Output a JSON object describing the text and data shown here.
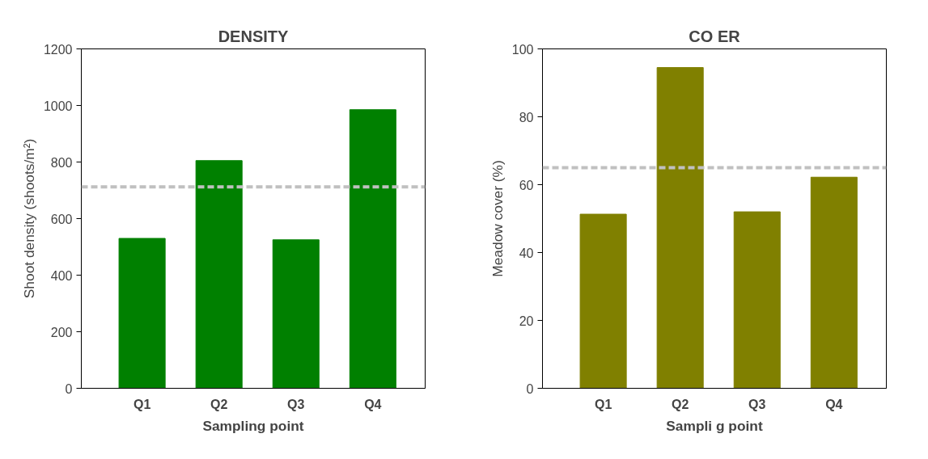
{
  "chart_data": [
    {
      "type": "bar",
      "title": "DENSITY",
      "xlabel": "Sampling point",
      "ylabel": "Shoot density (shoots/m²)",
      "categories": [
        "Q1",
        "Q2",
        "Q3",
        "Q4"
      ],
      "values": [
        530,
        805,
        525,
        985
      ],
      "color": "#008000",
      "ylim": [
        0,
        1200
      ],
      "yticks": [
        0,
        200,
        400,
        600,
        800,
        1000,
        1200
      ],
      "grid": false,
      "ref_lines": [
        {
          "axis": "y",
          "value": 712,
          "color": "#c0c0c0",
          "line_style": "dashed"
        }
      ]
    },
    {
      "type": "bar",
      "title": "CO ER",
      "xlabel": "Sampli g point",
      "ylabel": "Meadow cover (%)",
      "categories": [
        "Q1",
        "Q2",
        "Q3",
        "Q4"
      ],
      "values": [
        51.3,
        94.5,
        52,
        62.2
      ],
      "color": "#808000",
      "ylim": [
        0,
        100
      ],
      "yticks": [
        0,
        20,
        40,
        60,
        80,
        100
      ],
      "grid": false,
      "ref_lines": [
        {
          "axis": "y",
          "value": 65,
          "color": "#c0c0c0",
          "line_style": "dashed"
        }
      ]
    }
  ]
}
